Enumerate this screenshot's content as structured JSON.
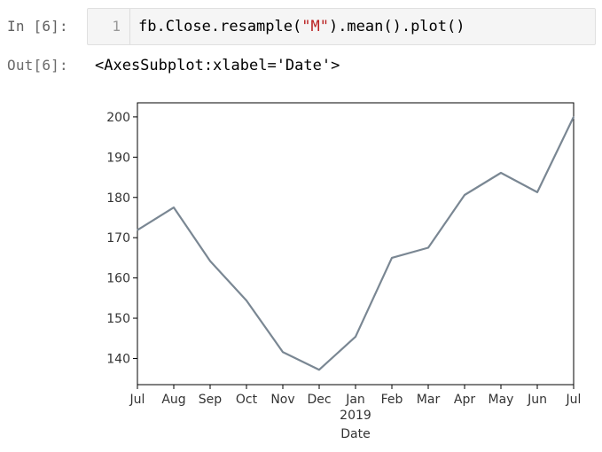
{
  "input_cell": {
    "prompt": "In [6]:",
    "line_number": "1",
    "code": {
      "before": "fb.Close.resample(",
      "string": "\"M\"",
      "after": ").mean().plot()"
    }
  },
  "output_cell": {
    "prompt": "Out[6]:",
    "text": "<AxesSubplot:xlabel='Date'>"
  },
  "chart_data": {
    "type": "line",
    "x": [
      "Jul",
      "Aug",
      "Sep",
      "Oct",
      "Nov",
      "Dec",
      "Jan",
      "Feb",
      "Mar",
      "Apr",
      "May",
      "Jun",
      "Jul"
    ],
    "x_year_label": "2019",
    "year_label_under": "Jan",
    "xlabel": "Date",
    "ylabel": "",
    "series": [
      {
        "values": [
          171.9,
          177.5,
          164.2,
          154.4,
          141.6,
          137.2,
          145.4,
          165.0,
          167.5,
          180.6,
          186.1,
          181.3,
          200.0
        ],
        "color": "#7a8793"
      }
    ],
    "yticks": [
      140,
      150,
      160,
      170,
      180,
      190,
      200
    ],
    "ylim": [
      133.5,
      203.5
    ],
    "grid": false
  }
}
